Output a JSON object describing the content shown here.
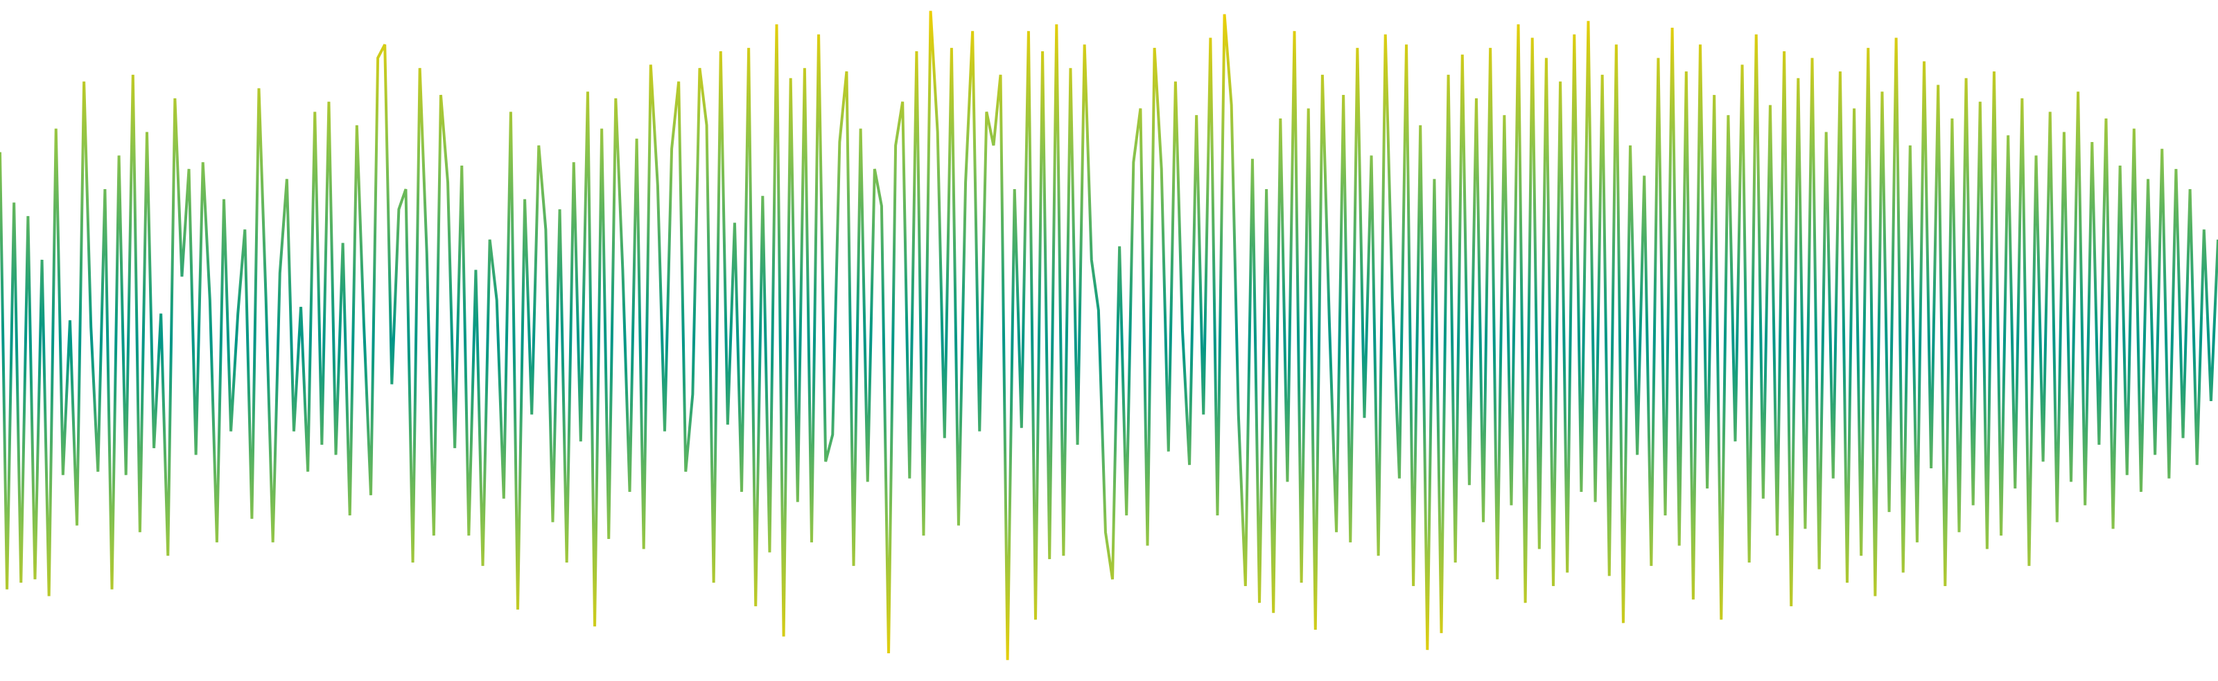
{
  "chart_data": {
    "type": "line",
    "title": "",
    "xlabel": "",
    "ylabel": "",
    "axes_visible": false,
    "grid": false,
    "legend": "none",
    "ylim": [
      -1,
      1
    ],
    "colormap": {
      "by": "magnitude",
      "low": "#009688",
      "mid": "#8BC34A",
      "high": "#F5D000"
    },
    "series": [
      {
        "values": [
          0.56,
          -0.74,
          0.41,
          -0.72,
          0.37,
          -0.71,
          0.24,
          -0.76,
          0.63,
          -0.4,
          0.06,
          -0.55,
          0.77,
          0.04,
          -0.39,
          0.45,
          -0.74,
          0.55,
          -0.4,
          0.79,
          -0.57,
          0.62,
          -0.32,
          0.08,
          -0.64,
          0.72,
          0.19,
          0.51,
          -0.34,
          0.53,
          0.12,
          -0.6,
          0.42,
          -0.27,
          0.08,
          0.33,
          -0.53,
          0.75,
          0.13,
          -0.6,
          0.2,
          0.48,
          -0.27,
          0.1,
          -0.39,
          0.68,
          -0.31,
          0.71,
          -0.34,
          0.29,
          -0.52,
          0.64,
          0.05,
          -0.46,
          0.84,
          0.88,
          -0.13,
          0.39,
          0.45,
          -0.66,
          0.81,
          0.26,
          -0.58,
          0.73,
          0.47,
          -0.32,
          0.52,
          -0.58,
          0.21,
          -0.67,
          0.3,
          0.12,
          -0.47,
          0.68,
          -0.8,
          0.42,
          -0.22,
          0.58,
          0.33,
          -0.54,
          0.39,
          -0.66,
          0.53,
          -0.3,
          0.74,
          -0.85,
          0.63,
          -0.59,
          0.72,
          0.21,
          -0.45,
          0.6,
          -0.62,
          0.82,
          0.46,
          -0.27,
          0.57,
          0.77,
          -0.39,
          -0.16,
          0.81,
          0.64,
          -0.72,
          0.86,
          -0.25,
          0.35,
          -0.45,
          0.87,
          -0.79,
          0.43,
          -0.63,
          0.94,
          -0.88,
          0.78,
          -0.48,
          0.81,
          -0.6,
          0.91,
          -0.36,
          -0.28,
          0.59,
          0.8,
          -0.67,
          0.63,
          -0.42,
          0.51,
          0.4,
          -0.93,
          0.58,
          0.71,
          -0.41,
          0.86,
          -0.58,
          0.98,
          0.62,
          -0.29,
          0.87,
          -0.55,
          0.47,
          0.92,
          -0.27,
          0.68,
          0.58,
          0.79,
          -0.95,
          0.45,
          -0.26,
          0.92,
          -0.83,
          0.86,
          -0.65,
          0.94,
          -0.64,
          0.81,
          -0.31,
          0.88,
          0.24,
          0.09,
          -0.57,
          -0.71,
          0.28,
          -0.52,
          0.53,
          0.69,
          -0.61,
          0.87,
          0.51,
          -0.33,
          0.77,
          0.03,
          -0.37,
          0.67,
          -0.22,
          0.9,
          -0.52,
          0.97,
          0.7,
          -0.22,
          -0.73,
          0.54,
          -0.78,
          0.45,
          -0.81,
          0.66,
          -0.42,
          0.92,
          -0.72,
          0.69,
          -0.86,
          0.79,
          0.05,
          -0.57,
          0.73,
          -0.6,
          0.87,
          -0.23,
          0.55,
          -0.64,
          0.91,
          0.13,
          -0.41,
          0.88,
          -0.73,
          0.64,
          -0.92,
          0.48,
          -0.87,
          0.79,
          -0.66,
          0.85,
          -0.43,
          0.72,
          -0.54,
          0.87,
          -0.71,
          0.67,
          -0.49,
          0.94,
          -0.78,
          0.9,
          -0.62,
          0.84,
          -0.73,
          0.77,
          -0.69,
          0.91,
          -0.45,
          0.95,
          -0.48,
          0.79,
          -0.7,
          0.88,
          -0.84,
          0.58,
          -0.34,
          0.49,
          -0.67,
          0.84,
          -0.52,
          0.93,
          -0.61,
          0.8,
          -0.77,
          0.88,
          -0.44,
          0.73,
          -0.83,
          0.67,
          -0.3,
          0.82,
          -0.66,
          0.91,
          -0.47,
          0.7,
          -0.58,
          0.86,
          -0.79,
          0.78,
          -0.56,
          0.84,
          -0.68,
          0.62,
          -0.41,
          0.8,
          -0.72,
          0.69,
          -0.64,
          0.87,
          -0.76,
          0.74,
          -0.51,
          0.9,
          -0.69,
          0.58,
          -0.6,
          0.83,
          -0.38,
          0.76,
          -0.73,
          0.66,
          -0.57,
          0.78,
          -0.49,
          0.71,
          -0.62,
          0.8,
          -0.58,
          0.61,
          -0.44,
          0.72,
          -0.67,
          0.55,
          -0.36,
          0.68,
          -0.54,
          0.62,
          -0.42,
          0.74,
          -0.49,
          0.59,
          -0.31,
          0.66,
          -0.56,
          0.52,
          -0.4,
          0.63,
          -0.45,
          0.48,
          -0.34,
          0.57,
          -0.41,
          0.51,
          -0.29,
          0.45,
          -0.37,
          0.33,
          -0.18,
          0.3
        ]
      }
    ]
  }
}
